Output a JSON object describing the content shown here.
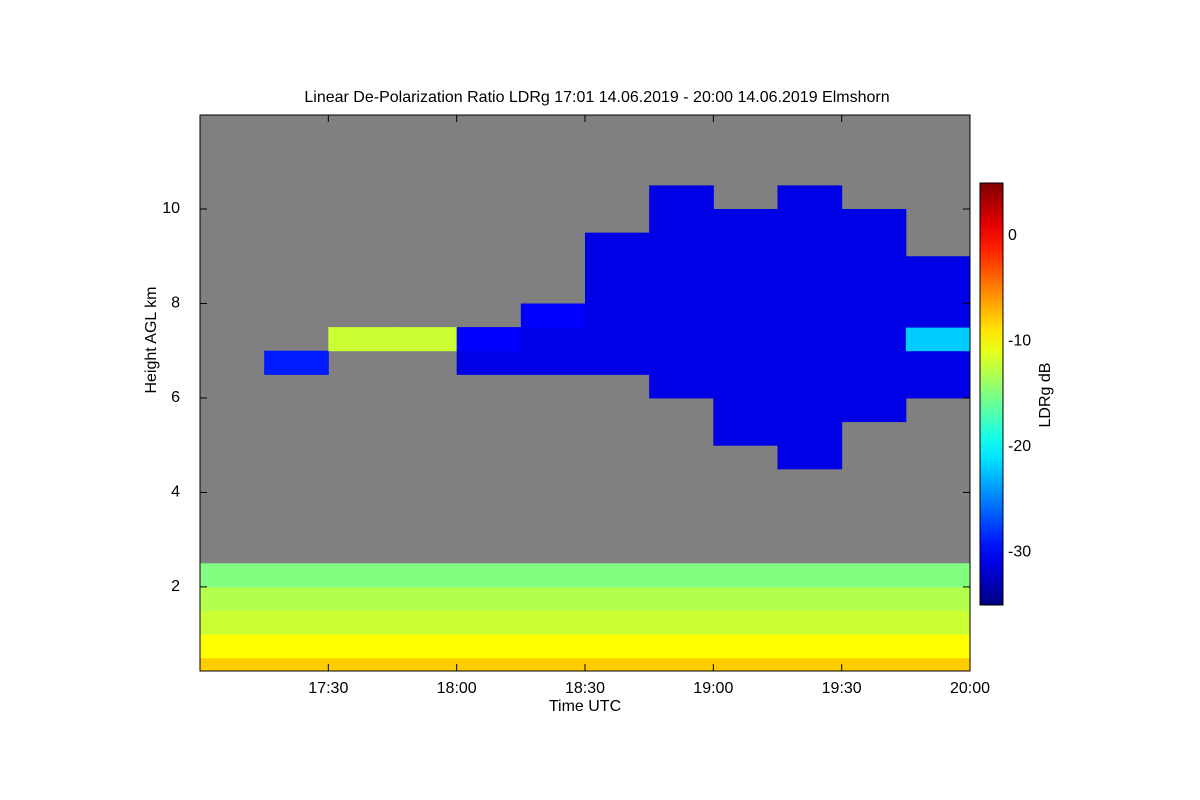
{
  "chart_data": {
    "type": "heatmap",
    "title": "Linear De-Polarization Ratio LDRg   17:01 14.06.2019 - 20:00 14.06.2019 Elmshorn",
    "x_label": "Time UTC",
    "y_label": "Height AGL km",
    "colorbar_label": "LDRg dB",
    "colormap": "jet",
    "missing_color": "#808080",
    "xlim": [
      17.0,
      20.0
    ],
    "xticks": [
      {
        "value": 17.5,
        "label": "17:30"
      },
      {
        "value": 18.0,
        "label": "18:00"
      },
      {
        "value": 18.5,
        "label": "18:30"
      },
      {
        "value": 19.0,
        "label": "19:00"
      },
      {
        "value": 19.5,
        "label": "19:30"
      },
      {
        "value": 20.0,
        "label": "20:00"
      }
    ],
    "ylim": [
      0.22,
      11.99
    ],
    "yticks": [
      2,
      4,
      6,
      8,
      10
    ],
    "zlim": [
      -35,
      5
    ],
    "zticks": [
      0,
      -10,
      -20,
      -30
    ],
    "x_edges": [
      17.0,
      17.25,
      17.5,
      17.75,
      18.0,
      18.25,
      18.5,
      18.75,
      19.0,
      19.25,
      19.5,
      19.75,
      20.0
    ],
    "y_edges": [
      0,
      0.5,
      1,
      1.5,
      2,
      2.5,
      3,
      3.5,
      4,
      4.5,
      5,
      5.5,
      6,
      6.5,
      7,
      7.5,
      8,
      8.5,
      9,
      9.5,
      10,
      10.5,
      11,
      11.5,
      12
    ],
    "z": [
      [
        -8,
        -8,
        -8,
        -8,
        -8,
        -8,
        -8,
        -8,
        -8,
        -8,
        -8,
        -8
      ],
      [
        -10,
        -10,
        -10,
        -10,
        -10,
        -10,
        -10,
        -10,
        -10,
        -10,
        -10,
        -10
      ],
      [
        -12,
        -12,
        -12,
        -12,
        -12,
        -12,
        -12,
        -12,
        -12,
        -12,
        -12,
        -12
      ],
      [
        -13,
        -13,
        -13,
        -13,
        -13,
        -13,
        -13,
        -13,
        -13,
        -13,
        -13,
        -13
      ],
      [
        -15,
        -15,
        -15,
        -15,
        -15,
        -15,
        -15,
        -15,
        -15,
        -15,
        -15,
        -15
      ],
      [
        null,
        null,
        null,
        null,
        null,
        null,
        null,
        null,
        null,
        null,
        null,
        null
      ],
      [
        null,
        null,
        null,
        null,
        null,
        null,
        null,
        null,
        null,
        null,
        null,
        null
      ],
      [
        null,
        null,
        null,
        null,
        null,
        null,
        null,
        null,
        null,
        null,
        null,
        null
      ],
      [
        null,
        null,
        null,
        null,
        null,
        null,
        null,
        null,
        null,
        null,
        null,
        null
      ],
      [
        null,
        null,
        null,
        null,
        null,
        null,
        null,
        null,
        null,
        -31,
        null,
        null
      ],
      [
        null,
        null,
        null,
        null,
        null,
        null,
        null,
        null,
        -31,
        -31,
        null,
        null
      ],
      [
        null,
        null,
        null,
        null,
        null,
        null,
        null,
        null,
        -31,
        -31,
        -31,
        null
      ],
      [
        null,
        null,
        null,
        null,
        null,
        null,
        null,
        -31,
        -31,
        -31,
        -31,
        -31
      ],
      [
        null,
        -29,
        null,
        null,
        -31,
        -31,
        -31,
        -31,
        -31,
        -31,
        -31,
        -31
      ],
      [
        null,
        null,
        -12,
        -12,
        -30,
        -31,
        -31,
        -31,
        -31,
        -31,
        -31,
        -22
      ],
      [
        null,
        null,
        null,
        null,
        null,
        -30,
        -31,
        -31,
        -31,
        -31,
        -31,
        -31
      ],
      [
        null,
        null,
        null,
        null,
        null,
        null,
        -31,
        -31,
        -31,
        -31,
        -31,
        -31
      ],
      [
        null,
        null,
        null,
        null,
        null,
        null,
        -31,
        -31,
        -31,
        -31,
        -31,
        -31
      ],
      [
        null,
        null,
        null,
        null,
        null,
        null,
        -31,
        -31,
        -31,
        -31,
        -31,
        null
      ],
      [
        null,
        null,
        null,
        null,
        null,
        null,
        null,
        -31,
        -31,
        -31,
        -31,
        null
      ],
      [
        null,
        null,
        null,
        null,
        null,
        null,
        null,
        -31,
        null,
        -31,
        null,
        null
      ],
      [
        null,
        null,
        null,
        null,
        null,
        null,
        null,
        null,
        null,
        null,
        null,
        null
      ],
      [
        null,
        null,
        null,
        null,
        null,
        null,
        null,
        null,
        null,
        null,
        null,
        null
      ],
      [
        null,
        null,
        null,
        null,
        null,
        null,
        null,
        null,
        null,
        null,
        null,
        null
      ]
    ]
  }
}
